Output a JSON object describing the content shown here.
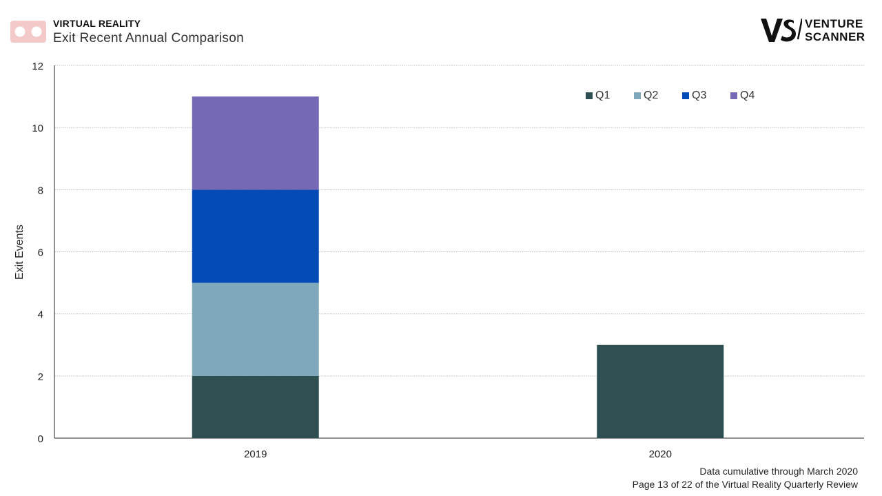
{
  "header": {
    "kicker": "VIRTUAL REALITY",
    "title": "Exit Recent Annual Comparison"
  },
  "brand": {
    "line1": "VENTURE",
    "line2": "SCANNER"
  },
  "footer": {
    "note": "Data cumulative through March 2020",
    "page": "Page 13 of 22 of the Virtual Reality Quarterly Review"
  },
  "colors": {
    "Q1": "#2e5052",
    "Q2": "#7fa8bb",
    "Q3": "#044bb8",
    "Q4": "#7568b4",
    "grid": "#cccccc",
    "axis": "#222222",
    "vr_logo": "#f4c9c9"
  },
  "chart_data": {
    "type": "bar",
    "stacked": true,
    "categories": [
      "2019",
      "2020"
    ],
    "series": [
      {
        "name": "Q1",
        "values": [
          2,
          3
        ]
      },
      {
        "name": "Q2",
        "values": [
          3,
          0
        ]
      },
      {
        "name": "Q3",
        "values": [
          3,
          0
        ]
      },
      {
        "name": "Q4",
        "values": [
          3,
          0
        ]
      }
    ],
    "title": "Exit Recent Annual Comparison",
    "xlabel": "",
    "ylabel": "Exit Events",
    "ylim": [
      0,
      12
    ],
    "yticks": [
      0,
      2,
      4,
      6,
      8,
      10,
      12
    ],
    "grid": true,
    "legend_position": "top-right"
  }
}
